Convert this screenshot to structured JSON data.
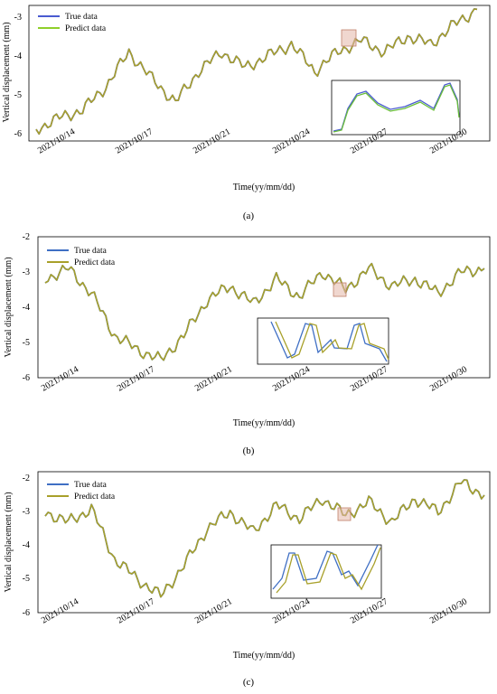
{
  "figure": {
    "panels": [
      {
        "id": "a",
        "caption": "(a)",
        "legend": [
          "True data",
          "Predict data"
        ],
        "ylabel": "Vertical displacement (mm)",
        "xlabel": "Time(yy/mm/dd)",
        "date_labels": [
          "2021/10/14",
          "2021/10/17",
          "2021/10/21",
          "2021/10/24",
          "2021/10/27",
          "2021/10/30"
        ],
        "y_ticks": [
          "-6",
          "-5",
          "-4",
          "-3"
        ]
      },
      {
        "id": "b",
        "caption": "(b)",
        "legend": [
          "True data",
          "Predict data"
        ],
        "ylabel": "Vertical displacement (mm)",
        "xlabel": "Time(yy/mm/dd)",
        "date_labels": [
          "2021/10/14",
          "2021/10/17",
          "2021/10/21",
          "2021/10/24",
          "2021/10/27",
          "2021/10/30"
        ],
        "y_ticks": [
          "-6",
          "-5",
          "-4",
          "-3",
          "-2"
        ]
      },
      {
        "id": "c",
        "caption": "(c)",
        "legend": [
          "True data",
          "Predict data"
        ],
        "ylabel": "Vertical displacement (mm)",
        "xlabel": "Time(yy/mm/dd)",
        "date_labels": [
          "2021/10/14",
          "2021/10/17",
          "2021/10/21",
          "2021/10/24",
          "2021/10/27",
          "2021/10/30"
        ],
        "y_ticks": [
          "-6",
          "-5",
          "-4",
          "-3",
          "-2"
        ]
      }
    ]
  },
  "chart_data": [
    {
      "type": "line",
      "xlabel": "Time(yy/mm/dd)",
      "ylabel": "Vertical displacement (mm)",
      "xlim": [
        "2021-10-13",
        "2021-11-01"
      ],
      "ylim": [
        -6.2,
        -2.7
      ],
      "x_tick_labels": [
        "2021/10/14",
        "2021/10/17",
        "2021/10/21",
        "2021/10/24",
        "2021/10/27",
        "2021/10/30"
      ],
      "y_ticks": [
        -6,
        -5,
        -4,
        -3
      ],
      "legend_position": "top-left",
      "series": [
        {
          "name": "True data",
          "color": "#4a5bd0",
          "x": [
            "2021-10-13",
            "2021-10-14",
            "2021-10-15",
            "2021-10-16",
            "2021-10-17",
            "2021-10-18",
            "2021-10-19",
            "2021-10-20",
            "2021-10-21",
            "2021-10-22",
            "2021-10-23",
            "2021-10-24",
            "2021-10-25",
            "2021-10-26",
            "2021-10-27",
            "2021-10-28",
            "2021-10-29",
            "2021-10-30",
            "2021-10-31",
            "2021-11-01"
          ],
          "values": [
            -5.9,
            -5.6,
            -5.4,
            -4.8,
            -3.9,
            -4.6,
            -5.2,
            -4.4,
            -3.9,
            -4.3,
            -4.0,
            -3.7,
            -4.4,
            -3.9,
            -3.6,
            -3.9,
            -3.5,
            -3.7,
            -3.2,
            -2.8
          ]
        },
        {
          "name": "Predict data",
          "color": "#a8a02a",
          "x": [
            "2021-10-13",
            "2021-10-14",
            "2021-10-15",
            "2021-10-16",
            "2021-10-17",
            "2021-10-18",
            "2021-10-19",
            "2021-10-20",
            "2021-10-21",
            "2021-10-22",
            "2021-10-23",
            "2021-10-24",
            "2021-10-25",
            "2021-10-26",
            "2021-10-27",
            "2021-10-28",
            "2021-10-29",
            "2021-10-30",
            "2021-10-31",
            "2021-11-01"
          ],
          "values": [
            -5.9,
            -5.6,
            -5.4,
            -4.8,
            -3.9,
            -4.6,
            -5.2,
            -4.4,
            -3.9,
            -4.3,
            -4.0,
            -3.7,
            -4.4,
            -3.9,
            -3.6,
            -3.9,
            -3.5,
            -3.7,
            -3.2,
            -2.8
          ]
        }
      ]
    },
    {
      "type": "line",
      "xlabel": "Time(yy/mm/dd)",
      "ylabel": "Vertical displacement (mm)",
      "xlim": [
        "2021-10-13",
        "2021-11-01"
      ],
      "ylim": [
        -6.0,
        -2.0
      ],
      "x_tick_labels": [
        "2021/10/14",
        "2021/10/17",
        "2021/10/21",
        "2021/10/24",
        "2021/10/27",
        "2021/10/30"
      ],
      "y_ticks": [
        -6,
        -5,
        -4,
        -3,
        -2
      ],
      "legend_position": "top-left",
      "series": [
        {
          "name": "True data",
          "color": "#3f6fc4",
          "x": [
            "2021-10-13",
            "2021-10-14",
            "2021-10-15",
            "2021-10-16",
            "2021-10-17",
            "2021-10-18",
            "2021-10-19",
            "2021-10-20",
            "2021-10-21",
            "2021-10-22",
            "2021-10-23",
            "2021-10-24",
            "2021-10-25",
            "2021-10-26",
            "2021-10-27",
            "2021-10-28",
            "2021-10-29",
            "2021-10-30",
            "2021-10-31",
            "2021-11-01"
          ],
          "values": [
            -3.2,
            -2.9,
            -3.6,
            -4.8,
            -5.2,
            -5.5,
            -4.8,
            -3.8,
            -3.4,
            -3.9,
            -3.2,
            -3.7,
            -3.0,
            -3.5,
            -2.9,
            -3.4,
            -3.2,
            -3.6,
            -3.0,
            -2.9
          ]
        },
        {
          "name": "Predict data",
          "color": "#a8a02a",
          "x": [
            "2021-10-13",
            "2021-10-14",
            "2021-10-15",
            "2021-10-16",
            "2021-10-17",
            "2021-10-18",
            "2021-10-19",
            "2021-10-20",
            "2021-10-21",
            "2021-10-22",
            "2021-10-23",
            "2021-10-24",
            "2021-10-25",
            "2021-10-26",
            "2021-10-27",
            "2021-10-28",
            "2021-10-29",
            "2021-10-30",
            "2021-10-31",
            "2021-11-01"
          ],
          "values": [
            -3.2,
            -2.9,
            -3.6,
            -4.8,
            -5.2,
            -5.5,
            -4.8,
            -3.8,
            -3.4,
            -3.9,
            -3.2,
            -3.7,
            -3.0,
            -3.5,
            -2.9,
            -3.4,
            -3.2,
            -3.6,
            -3.0,
            -2.9
          ]
        }
      ]
    },
    {
      "type": "line",
      "xlabel": "Time(yy/mm/dd)",
      "ylabel": "Vertical displacement (mm)",
      "xlim": [
        "2021-10-13",
        "2021-11-01"
      ],
      "ylim": [
        -6.0,
        -1.8
      ],
      "x_tick_labels": [
        "2021/10/14",
        "2021/10/17",
        "2021/10/21",
        "2021/10/24",
        "2021/10/27",
        "2021/10/30"
      ],
      "y_ticks": [
        -6,
        -5,
        -4,
        -3,
        -2
      ],
      "legend_position": "top-left",
      "series": [
        {
          "name": "True data",
          "color": "#3f6fc4",
          "x": [
            "2021-10-13",
            "2021-10-14",
            "2021-10-15",
            "2021-10-16",
            "2021-10-17",
            "2021-10-18",
            "2021-10-19",
            "2021-10-20",
            "2021-10-21",
            "2021-10-22",
            "2021-10-23",
            "2021-10-24",
            "2021-10-25",
            "2021-10-26",
            "2021-10-27",
            "2021-10-28",
            "2021-10-29",
            "2021-10-30",
            "2021-10-31",
            "2021-11-01"
          ],
          "values": [
            -3.0,
            -3.3,
            -2.9,
            -4.4,
            -5.0,
            -5.5,
            -4.6,
            -3.5,
            -3.0,
            -3.6,
            -2.8,
            -3.2,
            -2.6,
            -3.1,
            -2.7,
            -3.3,
            -2.6,
            -3.0,
            -2.1,
            -2.5
          ]
        },
        {
          "name": "Predict data",
          "color": "#a8a02a",
          "x": [
            "2021-10-13",
            "2021-10-14",
            "2021-10-15",
            "2021-10-16",
            "2021-10-17",
            "2021-10-18",
            "2021-10-19",
            "2021-10-20",
            "2021-10-21",
            "2021-10-22",
            "2021-10-23",
            "2021-10-24",
            "2021-10-25",
            "2021-10-26",
            "2021-10-27",
            "2021-10-28",
            "2021-10-29",
            "2021-10-30",
            "2021-10-31",
            "2021-11-01"
          ],
          "values": [
            -3.0,
            -3.3,
            -2.9,
            -4.4,
            -5.0,
            -5.5,
            -4.6,
            -3.5,
            -3.0,
            -3.6,
            -2.8,
            -3.2,
            -2.6,
            -3.1,
            -2.7,
            -3.3,
            -2.6,
            -3.0,
            -2.1,
            -2.5
          ]
        }
      ]
    }
  ]
}
